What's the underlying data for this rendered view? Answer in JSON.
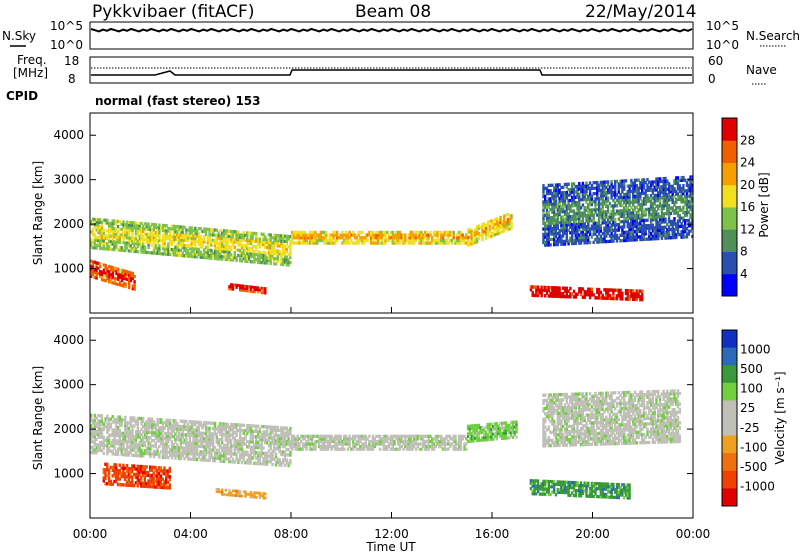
{
  "header": {
    "station": "Pykkvibaer (fitACF)",
    "beam": "Beam 08",
    "date": "22/May/2014"
  },
  "panels": {
    "nsky_label": "N.Sky",
    "nsky_ticks": [
      "10^5",
      "10^0"
    ],
    "nsearch_label": "N.Search",
    "nsearch_ticks": [
      "10^5",
      "10^0"
    ],
    "freq_label_1": "Freq.",
    "freq_label_2": "[MHz]",
    "freq_ticks": [
      "18",
      "8"
    ],
    "nave_label": "Nave",
    "nave_ticks": [
      "60",
      "0"
    ],
    "cpid_label": "CPID",
    "cpid_value": "normal (fast stereo) 153"
  },
  "colors": {
    "power": [
      "#0000ff",
      "#2a4fb0",
      "#4f8f5a",
      "#7fc24a",
      "#f0e020",
      "#f5a000",
      "#f06000",
      "#e00000"
    ],
    "velocity": [
      "#1030c0",
      "#2a6ab8",
      "#3a9a3a",
      "#70d040",
      "#c0c0b8",
      "#c0c0b8",
      "#f0a020",
      "#f07010",
      "#f04000",
      "#e00000"
    ]
  },
  "chart_data": [
    {
      "type": "heatmap",
      "name": "power",
      "ylabel": "Slant Range [km]",
      "yticks": [
        "1000",
        "2000",
        "3000",
        "4000"
      ],
      "ylim": [
        0,
        4500
      ],
      "xlim": [
        "00:00",
        "24:00"
      ],
      "colorbar_label": "Power [dB]",
      "colorbar_ticks": [
        "4",
        "8",
        "12",
        "16",
        "20",
        "24",
        "28"
      ],
      "colorbar_range": [
        0,
        32
      ],
      "bands": [
        {
          "t": [
            0.0,
            8.0
          ],
          "center": [
            1800,
            1400
          ],
          "width": 700,
          "level": 3
        },
        {
          "t": [
            8.0,
            15.0
          ],
          "center": [
            1700,
            1700
          ],
          "width": 300,
          "level": 4
        },
        {
          "t": [
            15.0,
            16.8
          ],
          "center": [
            1700,
            2100
          ],
          "width": 400,
          "level": 4
        },
        {
          "t": [
            0.0,
            1.8
          ],
          "center": [
            1000,
            700
          ],
          "width": 400,
          "level": 6
        },
        {
          "t": [
            5.5,
            7.0
          ],
          "center": [
            600,
            500
          ],
          "width": 150,
          "level": 6
        },
        {
          "t": [
            17.5,
            22.0
          ],
          "center": [
            500,
            400
          ],
          "width": 250,
          "level": 7
        },
        {
          "t": [
            18.0,
            24.0
          ],
          "center": [
            2200,
            2400
          ],
          "width": 1400,
          "level": 1
        }
      ]
    },
    {
      "type": "heatmap",
      "name": "velocity",
      "ylabel": "Slant Range [km]",
      "yticks": [
        "1000",
        "2000",
        "3000",
        "4000"
      ],
      "ylim": [
        0,
        4500
      ],
      "xticks": [
        "00:00",
        "04:00",
        "08:00",
        "12:00",
        "16:00",
        "20:00",
        "00:00"
      ],
      "xlabel": "Time UT",
      "colorbar_label": "Velocity [m s⁻¹]",
      "colorbar_ticks": [
        "1000",
        "500",
        "100",
        "25",
        "-25",
        "-100",
        "-500",
        "-1000"
      ],
      "bands": [
        {
          "t": [
            0.0,
            8.0
          ],
          "center": [
            1900,
            1600
          ],
          "width": 900,
          "level": 4
        },
        {
          "t": [
            8.0,
            15.0
          ],
          "center": [
            1700,
            1700
          ],
          "width": 350,
          "level": 4
        },
        {
          "t": [
            15.0,
            17.0
          ],
          "center": [
            1900,
            2000
          ],
          "width": 400,
          "level": 3
        },
        {
          "t": [
            0.5,
            3.2
          ],
          "center": [
            1000,
            900
          ],
          "width": 500,
          "level": 8
        },
        {
          "t": [
            5.0,
            7.0
          ],
          "center": [
            600,
            500
          ],
          "width": 150,
          "level": 6
        },
        {
          "t": [
            17.5,
            21.5
          ],
          "center": [
            700,
            600
          ],
          "width": 350,
          "level": 2
        },
        {
          "t": [
            18.0,
            23.5
          ],
          "center": [
            2200,
            2300
          ],
          "width": 1200,
          "level": 4
        }
      ]
    }
  ]
}
